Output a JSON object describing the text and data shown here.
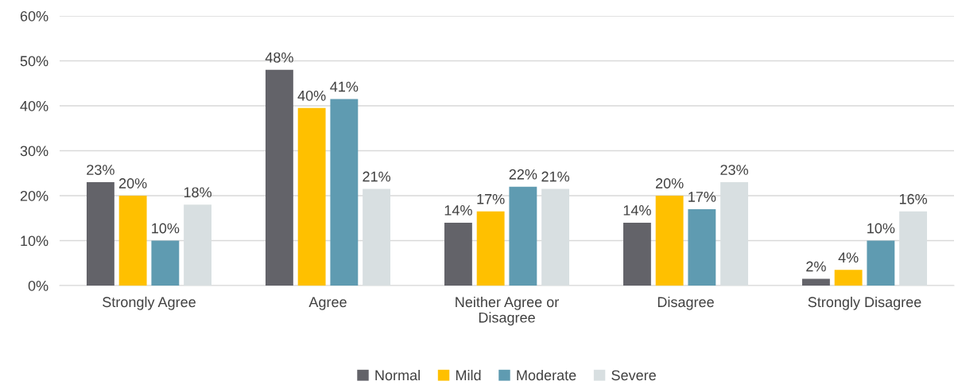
{
  "chart_data": {
    "type": "bar",
    "categories": [
      "Strongly Agree",
      "Agree",
      "Neither Agree or\nDisagree",
      "Disagree",
      "Strongly Disagree"
    ],
    "series": [
      {
        "name": "Normal",
        "color": "#636369",
        "values": [
          23,
          48,
          14,
          14,
          1.5
        ],
        "value_labels": [
          "23%",
          "48%",
          "14%",
          "14%",
          "2%"
        ]
      },
      {
        "name": "Mild",
        "color": "#ffc000",
        "values": [
          20,
          39.5,
          16.5,
          20,
          3.5
        ],
        "value_labels": [
          "20%",
          "40%",
          "17%",
          "20%",
          "4%"
        ]
      },
      {
        "name": "Moderate",
        "color": "#5f9bb1",
        "values": [
          10,
          41.5,
          22,
          17,
          10
        ],
        "value_labels": [
          "10%",
          "41%",
          "22%",
          "17%",
          "10%"
        ]
      },
      {
        "name": "Severe",
        "color": "#d8dfe1",
        "values": [
          18,
          21.5,
          21.5,
          23,
          16.5
        ],
        "value_labels": [
          "18%",
          "21%",
          "21%",
          "23%",
          "16%"
        ]
      }
    ],
    "ylim": [
      0,
      60
    ],
    "yticks": [
      {
        "value": 0,
        "label": "0%"
      },
      {
        "value": 10,
        "label": "10%"
      },
      {
        "value": 20,
        "label": "20%"
      },
      {
        "value": 30,
        "label": "30%"
      },
      {
        "value": 40,
        "label": "40%"
      },
      {
        "value": 50,
        "label": "50%"
      },
      {
        "value": 60,
        "label": "60%"
      }
    ],
    "grid": "y",
    "legend": "bottom"
  }
}
